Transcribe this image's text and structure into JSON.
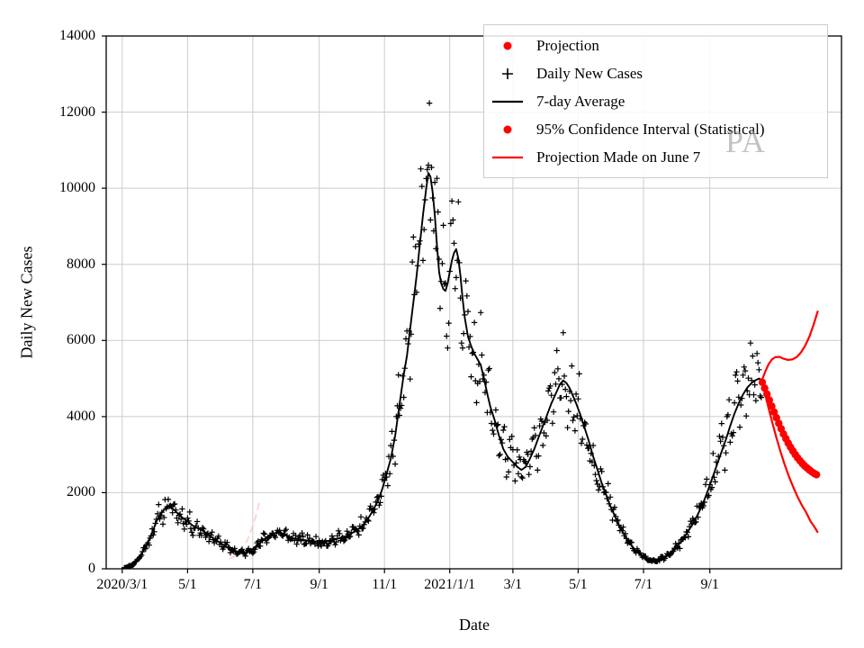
{
  "figure": {
    "watermark": "PA",
    "xlabel": "Date",
    "ylabel": "Daily New Cases",
    "background": "#ffffff"
  },
  "legend": {
    "items": [
      {
        "label": "Projection",
        "marker": "dot",
        "color": "#ff0000"
      },
      {
        "label": "Daily New Cases",
        "marker": "plus",
        "color": "#000000"
      },
      {
        "label": "7-day Average",
        "marker": "line",
        "color": "#000000"
      },
      {
        "label": "95% Confidence Interval (Statistical)",
        "marker": "dot",
        "color": "#ff0000"
      },
      {
        "label": "Projection Made on June 7",
        "marker": "line",
        "color": "#ff0000"
      }
    ]
  },
  "chart_data": {
    "type": "line",
    "title": "",
    "xlabel": "Date",
    "ylabel": "Daily New Cases",
    "x_unit": "days since 2020-03-01",
    "xlim": [
      -15,
      672
    ],
    "ylim": [
      0,
      14000
    ],
    "grid": true,
    "legend_position": "upper right",
    "colors": {
      "cases": "#000000",
      "average": "#000000",
      "projection": "#ff0000",
      "grid": "#cccccc",
      "frame": "#000000",
      "faint_projection": "#ffb3b3"
    },
    "yticks": [
      {
        "value": 0,
        "label": "0"
      },
      {
        "value": 2000,
        "label": "2000"
      },
      {
        "value": 4000,
        "label": "4000"
      },
      {
        "value": 6000,
        "label": "6000"
      },
      {
        "value": 8000,
        "label": "8000"
      },
      {
        "value": 10000,
        "label": "10000"
      },
      {
        "value": 12000,
        "label": "12000"
      },
      {
        "value": 14000,
        "label": "14000"
      }
    ],
    "xticks": [
      {
        "day": 0,
        "label": "2020/3/1"
      },
      {
        "day": 61,
        "label": "5/1"
      },
      {
        "day": 122,
        "label": "7/1"
      },
      {
        "day": 184,
        "label": "9/1"
      },
      {
        "day": 245,
        "label": "11/1"
      },
      {
        "day": 306,
        "label": "2021/1/1"
      },
      {
        "day": 365,
        "label": "3/1"
      },
      {
        "day": 426,
        "label": "5/1"
      },
      {
        "day": 487,
        "label": "7/1"
      },
      {
        "day": 549,
        "label": "9/1"
      }
    ],
    "series": {
      "seven_day_average": {
        "name": "7-day Average",
        "points": [
          [
            0,
            20
          ],
          [
            4,
            40
          ],
          [
            8,
            80
          ],
          [
            12,
            160
          ],
          [
            16,
            300
          ],
          [
            20,
            480
          ],
          [
            24,
            700
          ],
          [
            28,
            950
          ],
          [
            32,
            1250
          ],
          [
            36,
            1450
          ],
          [
            40,
            1580
          ],
          [
            44,
            1650
          ],
          [
            48,
            1560
          ],
          [
            52,
            1450
          ],
          [
            56,
            1350
          ],
          [
            61,
            1250
          ],
          [
            66,
            1130
          ],
          [
            71,
            1060
          ],
          [
            76,
            990
          ],
          [
            81,
            880
          ],
          [
            86,
            780
          ],
          [
            91,
            690
          ],
          [
            96,
            600
          ],
          [
            101,
            510
          ],
          [
            106,
            460
          ],
          [
            111,
            420
          ],
          [
            116,
            420
          ],
          [
            120,
            480
          ],
          [
            124,
            570
          ],
          [
            128,
            660
          ],
          [
            132,
            760
          ],
          [
            136,
            850
          ],
          [
            140,
            910
          ],
          [
            144,
            950
          ],
          [
            148,
            930
          ],
          [
            152,
            890
          ],
          [
            156,
            840
          ],
          [
            160,
            800
          ],
          [
            165,
            770
          ],
          [
            170,
            755
          ],
          [
            175,
            740
          ],
          [
            180,
            715
          ],
          [
            184,
            700
          ],
          [
            189,
            715
          ],
          [
            194,
            745
          ],
          [
            199,
            775
          ],
          [
            204,
            810
          ],
          [
            209,
            860
          ],
          [
            214,
            930
          ],
          [
            219,
            1010
          ],
          [
            224,
            1120
          ],
          [
            229,
            1290
          ],
          [
            234,
            1520
          ],
          [
            239,
            1800
          ],
          [
            243,
            2100
          ],
          [
            247,
            2500
          ],
          [
            251,
            2900
          ],
          [
            255,
            3500
          ],
          [
            259,
            4300
          ],
          [
            263,
            5100
          ],
          [
            266,
            5600
          ],
          [
            269,
            6300
          ],
          [
            272,
            7000
          ],
          [
            275,
            7700
          ],
          [
            278,
            8500
          ],
          [
            281,
            9300
          ],
          [
            284,
            10000
          ],
          [
            286,
            10400
          ],
          [
            288,
            10300
          ],
          [
            290,
            9900
          ],
          [
            292,
            9300
          ],
          [
            294,
            8500
          ],
          [
            296,
            7800
          ],
          [
            298,
            7500
          ],
          [
            300,
            7350
          ],
          [
            302,
            7300
          ],
          [
            304,
            7500
          ],
          [
            306,
            7800
          ],
          [
            308,
            8100
          ],
          [
            310,
            8300
          ],
          [
            312,
            8400
          ],
          [
            314,
            8150
          ],
          [
            316,
            7700
          ],
          [
            318,
            7100
          ],
          [
            320,
            6600
          ],
          [
            323,
            6100
          ],
          [
            326,
            5850
          ],
          [
            329,
            5650
          ],
          [
            332,
            5500
          ],
          [
            335,
            5350
          ],
          [
            338,
            5000
          ],
          [
            341,
            4600
          ],
          [
            344,
            4250
          ],
          [
            348,
            3900
          ],
          [
            352,
            3500
          ],
          [
            356,
            3150
          ],
          [
            360,
            2950
          ],
          [
            365,
            2800
          ],
          [
            369,
            2680
          ],
          [
            373,
            2600
          ],
          [
            377,
            2680
          ],
          [
            381,
            2900
          ],
          [
            385,
            3150
          ],
          [
            389,
            3450
          ],
          [
            393,
            3750
          ],
          [
            397,
            4050
          ],
          [
            401,
            4350
          ],
          [
            405,
            4600
          ],
          [
            409,
            4850
          ],
          [
            412,
            4950
          ],
          [
            415,
            4880
          ],
          [
            418,
            4750
          ],
          [
            421,
            4550
          ],
          [
            424,
            4350
          ],
          [
            428,
            4050
          ],
          [
            432,
            3700
          ],
          [
            436,
            3350
          ],
          [
            440,
            2950
          ],
          [
            444,
            2600
          ],
          [
            448,
            2250
          ],
          [
            452,
            1950
          ],
          [
            456,
            1650
          ],
          [
            460,
            1400
          ],
          [
            464,
            1150
          ],
          [
            468,
            950
          ],
          [
            472,
            760
          ],
          [
            476,
            600
          ],
          [
            480,
            470
          ],
          [
            484,
            370
          ],
          [
            488,
            300
          ],
          [
            492,
            250
          ],
          [
            496,
            215
          ],
          [
            500,
            220
          ],
          [
            504,
            255
          ],
          [
            508,
            320
          ],
          [
            512,
            400
          ],
          [
            516,
            500
          ],
          [
            520,
            640
          ],
          [
            524,
            790
          ],
          [
            528,
            960
          ],
          [
            532,
            1130
          ],
          [
            536,
            1330
          ],
          [
            540,
            1560
          ],
          [
            544,
            1820
          ],
          [
            548,
            2120
          ],
          [
            552,
            2440
          ],
          [
            556,
            2760
          ],
          [
            560,
            3080
          ],
          [
            564,
            3400
          ],
          [
            568,
            3750
          ],
          [
            572,
            4080
          ],
          [
            576,
            4350
          ],
          [
            580,
            4580
          ],
          [
            584,
            4760
          ],
          [
            588,
            4880
          ],
          [
            592,
            4960
          ],
          [
            595,
            5000
          ],
          [
            598,
            4950
          ]
        ]
      },
      "daily_new_cases": {
        "name": "Daily New Cases",
        "generated_from": "seven_day_average",
        "noise_fraction": 0.15,
        "weekly_amplitude": 0.1,
        "seed": 11,
        "start_day": 2,
        "end_day": 597
      },
      "projection_upper_ci": {
        "name": "95% Confidence Interval (Statistical) upper",
        "points": [
          [
            598,
            4980
          ],
          [
            601,
            5200
          ],
          [
            604,
            5380
          ],
          [
            607,
            5500
          ],
          [
            610,
            5560
          ],
          [
            614,
            5570
          ],
          [
            618,
            5520
          ],
          [
            622,
            5490
          ],
          [
            626,
            5500
          ],
          [
            630,
            5560
          ],
          [
            634,
            5680
          ],
          [
            638,
            5860
          ],
          [
            642,
            6100
          ],
          [
            646,
            6420
          ],
          [
            650,
            6780
          ]
        ]
      },
      "projection_lower_ci": {
        "name": "95% Confidence Interval (Statistical) lower",
        "points": [
          [
            598,
            4880
          ],
          [
            601,
            4550
          ],
          [
            604,
            4210
          ],
          [
            607,
            3880
          ],
          [
            611,
            3460
          ],
          [
            615,
            3080
          ],
          [
            619,
            2730
          ],
          [
            623,
            2420
          ],
          [
            627,
            2140
          ],
          [
            631,
            1890
          ],
          [
            635,
            1670
          ],
          [
            639,
            1480
          ],
          [
            643,
            1250
          ],
          [
            646,
            1130
          ],
          [
            648,
            1040
          ],
          [
            650,
            950
          ]
        ]
      },
      "projection_central": {
        "name": "Projection",
        "style": "thick-dotted",
        "step_days": 2.2,
        "dot_radius": 4.2,
        "points": [
          [
            598,
            4900
          ],
          [
            602,
            4620
          ],
          [
            606,
            4330
          ],
          [
            610,
            4050
          ],
          [
            614,
            3780
          ],
          [
            618,
            3530
          ],
          [
            622,
            3310
          ],
          [
            626,
            3120
          ],
          [
            630,
            2950
          ],
          [
            634,
            2810
          ],
          [
            638,
            2690
          ],
          [
            642,
            2600
          ],
          [
            645,
            2530
          ],
          [
            648,
            2480
          ],
          [
            650,
            2460
          ]
        ]
      },
      "old_projection_faint": {
        "name": "Projection Made on June 7 (faded)",
        "style": "dashed",
        "points": [
          [
            100,
            260
          ],
          [
            106,
            350
          ],
          [
            112,
            520
          ],
          [
            117,
            760
          ],
          [
            121,
            1050
          ],
          [
            125,
            1400
          ],
          [
            128,
            1750
          ]
        ]
      }
    }
  }
}
